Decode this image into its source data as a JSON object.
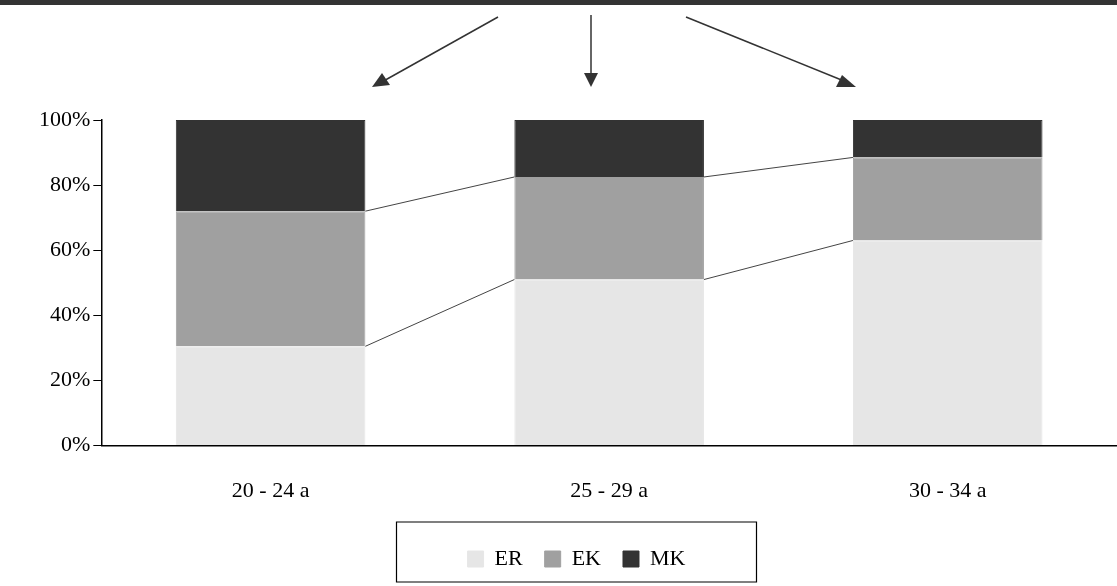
{
  "chart_data": {
    "type": "bar",
    "stacked": true,
    "categories": [
      "20 - 24 a",
      "25 - 29 a",
      "30 - 34 a"
    ],
    "series": [
      {
        "name": "ER",
        "color": "#e6e6e6",
        "values": [
          30.5,
          51,
          63
        ]
      },
      {
        "name": "EK",
        "color": "#a0a0a0",
        "values": [
          41.5,
          31.5,
          25.5
        ]
      },
      {
        "name": "MK",
        "color": "#333333",
        "values": [
          28,
          17.5,
          11.5
        ]
      }
    ],
    "ylim": [
      0,
      100
    ],
    "yticks": [
      {
        "value": 0,
        "label": "0%"
      },
      {
        "value": 20,
        "label": "20%"
      },
      {
        "value": 40,
        "label": "40%"
      },
      {
        "value": 60,
        "label": "60%"
      },
      {
        "value": 80,
        "label": "80%"
      },
      {
        "value": 100,
        "label": "100%"
      }
    ],
    "grid": false,
    "legend": "bottom"
  }
}
